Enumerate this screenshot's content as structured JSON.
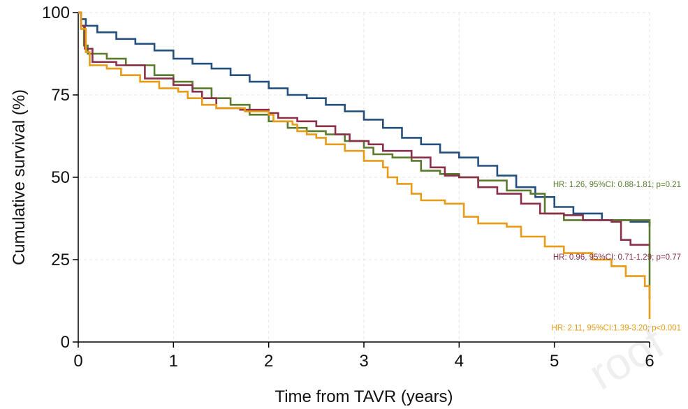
{
  "chart_data": {
    "type": "line",
    "step": true,
    "xlabel": "Time from TAVR (years)",
    "ylabel": "Cumulative survival (%)",
    "xlim": [
      0,
      6
    ],
    "ylim": [
      0,
      100
    ],
    "xticks": [
      "0",
      "1",
      "2",
      "3",
      "4",
      "5",
      "6"
    ],
    "yticks": [
      "0",
      "25",
      "50",
      "75",
      "100"
    ],
    "grid": "dashed light gray",
    "colors": {
      "blue": "#24507f",
      "green": "#5a7a2e",
      "red": "#8b3048",
      "orange": "#e79b17"
    },
    "series": [
      {
        "color": "blue",
        "points": [
          [
            0,
            100
          ],
          [
            0.03,
            98
          ],
          [
            0.08,
            96
          ],
          [
            0.2,
            94
          ],
          [
            0.4,
            92
          ],
          [
            0.6,
            90.5
          ],
          [
            0.8,
            88.5
          ],
          [
            1.0,
            86
          ],
          [
            1.2,
            84.5
          ],
          [
            1.4,
            83
          ],
          [
            1.6,
            81
          ],
          [
            1.8,
            79
          ],
          [
            2.0,
            77
          ],
          [
            2.2,
            75
          ],
          [
            2.4,
            74
          ],
          [
            2.6,
            72
          ],
          [
            2.8,
            70
          ],
          [
            3.0,
            67.5
          ],
          [
            3.2,
            65
          ],
          [
            3.4,
            62
          ],
          [
            3.6,
            60
          ],
          [
            3.8,
            57.5
          ],
          [
            4.0,
            56
          ],
          [
            4.2,
            53.5
          ],
          [
            4.4,
            50.5
          ],
          [
            4.6,
            47
          ],
          [
            4.8,
            44
          ],
          [
            5.0,
            41
          ],
          [
            5.2,
            39
          ],
          [
            5.5,
            37
          ],
          [
            5.8,
            36.5
          ],
          [
            6.0,
            35
          ]
        ]
      },
      {
        "color": "green",
        "points": [
          [
            0,
            100
          ],
          [
            0.03,
            96
          ],
          [
            0.06,
            90
          ],
          [
            0.1,
            87.5
          ],
          [
            0.3,
            86
          ],
          [
            0.5,
            84
          ],
          [
            0.8,
            81
          ],
          [
            1.0,
            79
          ],
          [
            1.2,
            77
          ],
          [
            1.4,
            74
          ],
          [
            1.6,
            72
          ],
          [
            1.8,
            69
          ],
          [
            2.0,
            67
          ],
          [
            2.2,
            65
          ],
          [
            2.4,
            64
          ],
          [
            2.6,
            63
          ],
          [
            2.8,
            61
          ],
          [
            3.0,
            59
          ],
          [
            3.1,
            57
          ],
          [
            3.3,
            56
          ],
          [
            3.5,
            55
          ],
          [
            3.6,
            52
          ],
          [
            3.8,
            51
          ],
          [
            4.0,
            50
          ],
          [
            4.2,
            49
          ],
          [
            4.5,
            46
          ],
          [
            4.75,
            45
          ],
          [
            4.9,
            39
          ],
          [
            5.1,
            37
          ],
          [
            5.5,
            37
          ],
          [
            6.0,
            37
          ],
          [
            6.0,
            13
          ]
        ]
      },
      {
        "color": "red",
        "points": [
          [
            0,
            100
          ],
          [
            0.03,
            96
          ],
          [
            0.07,
            89
          ],
          [
            0.15,
            85
          ],
          [
            0.4,
            84
          ],
          [
            0.7,
            80
          ],
          [
            1.0,
            78
          ],
          [
            1.2,
            76
          ],
          [
            1.3,
            74
          ],
          [
            1.45,
            71
          ],
          [
            1.7,
            70.5
          ],
          [
            2.0,
            69.5
          ],
          [
            2.1,
            68
          ],
          [
            2.3,
            67
          ],
          [
            2.5,
            65.5
          ],
          [
            2.7,
            63
          ],
          [
            2.85,
            61
          ],
          [
            3.05,
            60
          ],
          [
            3.2,
            58
          ],
          [
            3.5,
            56
          ],
          [
            3.7,
            53
          ],
          [
            3.85,
            50.5
          ],
          [
            4.0,
            50
          ],
          [
            4.2,
            47
          ],
          [
            4.4,
            45
          ],
          [
            4.65,
            42
          ],
          [
            4.85,
            39
          ],
          [
            5.1,
            38.5
          ],
          [
            5.3,
            37
          ],
          [
            5.6,
            36.5
          ],
          [
            5.7,
            31
          ],
          [
            5.8,
            29.5
          ],
          [
            6.0,
            29.5
          ]
        ]
      },
      {
        "color": "orange",
        "points": [
          [
            0,
            100
          ],
          [
            0.03,
            95
          ],
          [
            0.08,
            88
          ],
          [
            0.12,
            84
          ],
          [
            0.3,
            83
          ],
          [
            0.45,
            81
          ],
          [
            0.65,
            79
          ],
          [
            0.85,
            77
          ],
          [
            1.05,
            76
          ],
          [
            1.15,
            74
          ],
          [
            1.3,
            72
          ],
          [
            1.45,
            71
          ],
          [
            1.75,
            70
          ],
          [
            2.0,
            69
          ],
          [
            2.05,
            67
          ],
          [
            2.25,
            66
          ],
          [
            2.3,
            64
          ],
          [
            2.4,
            63
          ],
          [
            2.5,
            62
          ],
          [
            2.6,
            60
          ],
          [
            2.8,
            58
          ],
          [
            3.0,
            55
          ],
          [
            3.2,
            53
          ],
          [
            3.25,
            50
          ],
          [
            3.35,
            48
          ],
          [
            3.5,
            45
          ],
          [
            3.6,
            43
          ],
          [
            3.85,
            42
          ],
          [
            4.05,
            38
          ],
          [
            4.2,
            36
          ],
          [
            4.5,
            35
          ],
          [
            4.65,
            32
          ],
          [
            4.9,
            29
          ],
          [
            5.1,
            27
          ],
          [
            5.4,
            25
          ],
          [
            5.6,
            23
          ],
          [
            5.75,
            20
          ],
          [
            5.95,
            17
          ],
          [
            6.0,
            15
          ],
          [
            6.0,
            7
          ]
        ]
      }
    ],
    "annotations": [
      {
        "text": "HR: 1.26, 95%CI: 0.88-1.81; p=0.21",
        "color": "green",
        "x": 6.0,
        "y": 47
      },
      {
        "text": "HR: 0.96, 95%CI: 0.71-1.29; p=0.77",
        "color": "red",
        "x": 6.0,
        "y": 25
      },
      {
        "text": "HR: 2.11, 95%CI:1.39-3.20; p<0.001",
        "color": "orange",
        "x": 6.0,
        "y": 3.5
      }
    ]
  }
}
